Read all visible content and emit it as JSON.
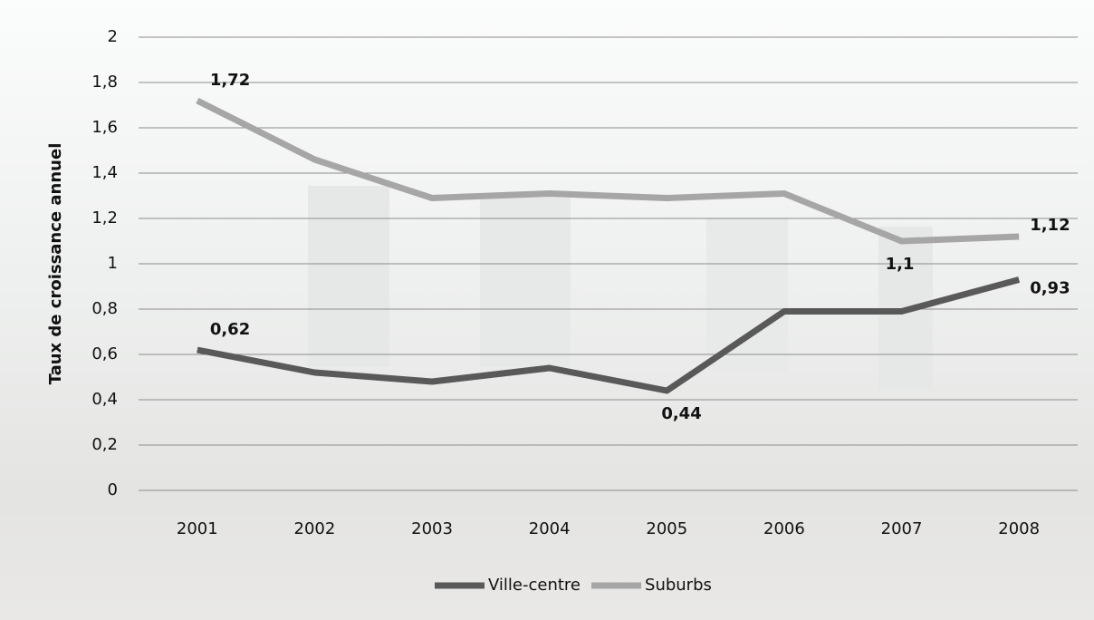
{
  "chart_data": {
    "type": "line",
    "ylabel": "Taux de croissance annuel",
    "categories": [
      "2001",
      "2002",
      "2003",
      "2004",
      "2005",
      "2006",
      "2007",
      "2008"
    ],
    "series": [
      {
        "name": "Ville-centre",
        "color": "#595959",
        "values": [
          0.62,
          0.52,
          0.48,
          0.54,
          0.44,
          0.79,
          0.79,
          0.93
        ],
        "value_labels": [
          "0,62",
          null,
          null,
          null,
          "0,44",
          null,
          null,
          "0,93"
        ]
      },
      {
        "name": "Suburbs",
        "color": "#a6a6a6",
        "values": [
          1.72,
          1.46,
          1.29,
          1.31,
          1.29,
          1.31,
          1.1,
          1.12
        ],
        "value_labels": [
          "1,72",
          null,
          null,
          null,
          null,
          null,
          "1,1",
          "1,12"
        ]
      }
    ],
    "ylim": [
      0,
      2
    ],
    "yticks": [
      0,
      {
        "value": 0.2,
        "label": "0,2"
      },
      {
        "value": 0.4,
        "label": "0,4"
      },
      {
        "value": 0.6,
        "label": "0,6"
      },
      {
        "value": 0.8,
        "label": "0,8"
      },
      1,
      {
        "value": 1.2,
        "label": "1,2"
      },
      {
        "value": 1.4,
        "label": "1,4"
      },
      {
        "value": 1.6,
        "label": "1,6"
      },
      {
        "value": 1.8,
        "label": "1,8"
      },
      2
    ],
    "grid": true,
    "legend": "bottom"
  }
}
